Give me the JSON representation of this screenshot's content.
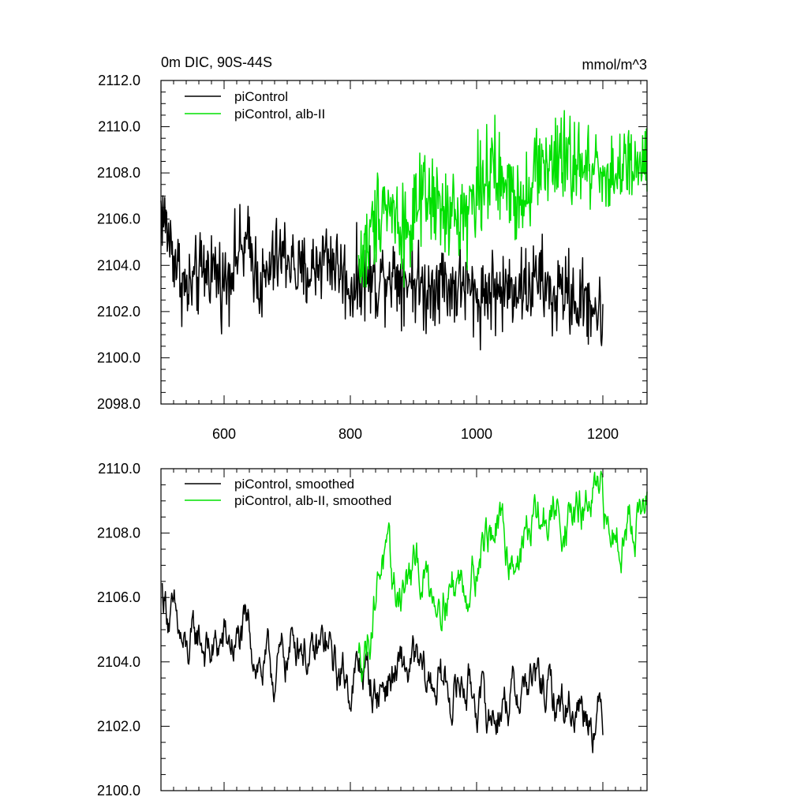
{
  "chart_data": [
    {
      "type": "line",
      "title": "0m DIC, 90S-44S",
      "units": "mmol/m^3",
      "xlabel": "",
      "ylabel": "",
      "xlim": [
        500,
        1270
      ],
      "ylim": [
        2098.0,
        2112.0
      ],
      "x_ticks": [
        600,
        800,
        1000,
        1200
      ],
      "x_tick_labels": [
        "600",
        "800",
        "1000",
        "1200"
      ],
      "y_ticks": [
        2098.0,
        2100.0,
        2102.0,
        2104.0,
        2106.0,
        2108.0,
        2110.0,
        2112.0
      ],
      "y_tick_labels": [
        "2098.0",
        "2100.0",
        "2102.0",
        "2104.0",
        "2106.0",
        "2108.0",
        "2110.0",
        "2112.0"
      ],
      "grid": false,
      "legend_position": "top-left",
      "series": [
        {
          "name": "piControl",
          "color": "#000000",
          "x_range": [
            500,
            1200
          ],
          "x": [
            500,
            520,
            540,
            560,
            580,
            600,
            620,
            640,
            660,
            680,
            700,
            720,
            740,
            760,
            780,
            800,
            820,
            840,
            860,
            880,
            900,
            920,
            940,
            960,
            980,
            1000,
            1020,
            1040,
            1060,
            1080,
            1100,
            1120,
            1140,
            1160,
            1180,
            1200
          ],
          "y": [
            2106.5,
            2104.5,
            2102.8,
            2103.5,
            2104.0,
            2103.2,
            2104.5,
            2104.8,
            2103.0,
            2104.2,
            2104.5,
            2103.5,
            2103.8,
            2104.5,
            2104.0,
            2103.0,
            2103.6,
            2103.2,
            2103.8,
            2103.5,
            2103.4,
            2102.8,
            2103.5,
            2103.0,
            2103.2,
            2102.5,
            2103.0,
            2102.8,
            2103.2,
            2103.0,
            2103.5,
            2102.5,
            2103.0,
            2102.3,
            2102.5,
            2101.5
          ]
        },
        {
          "name": "piControl, alb-II",
          "color": "#00e000",
          "x_range": [
            813,
            1270
          ],
          "x": [
            813,
            830,
            850,
            870,
            890,
            910,
            930,
            950,
            970,
            990,
            1010,
            1030,
            1050,
            1070,
            1090,
            1110,
            1130,
            1150,
            1170,
            1190,
            1210,
            1230,
            1250,
            1270
          ],
          "y": [
            2104.0,
            2105.0,
            2107.0,
            2106.2,
            2105.5,
            2106.5,
            2106.8,
            2106.0,
            2106.2,
            2106.5,
            2108.0,
            2107.8,
            2107.2,
            2107.0,
            2108.0,
            2108.5,
            2108.3,
            2108.6,
            2108.0,
            2108.5,
            2107.8,
            2108.2,
            2108.0,
            2108.5
          ]
        }
      ]
    },
    {
      "type": "line",
      "title": "",
      "xlabel": "",
      "ylabel": "",
      "xlim": [
        500,
        1270
      ],
      "ylim": [
        2100.0,
        2110.0
      ],
      "x_ticks": [
        600,
        800,
        1000,
        1200
      ],
      "y_ticks": [
        2100.0,
        2102.0,
        2104.0,
        2106.0,
        2108.0,
        2110.0
      ],
      "y_tick_labels": [
        "2100.0",
        "2102.0",
        "2104.0",
        "2106.0",
        "2108.0",
        "2110.0"
      ],
      "grid": false,
      "legend_position": "top-left",
      "series": [
        {
          "name": "piControl, smoothed",
          "color": "#000000",
          "x_range": [
            502,
            1200
          ],
          "x": [
            502,
            520,
            540,
            560,
            580,
            600,
            620,
            640,
            660,
            680,
            700,
            720,
            740,
            760,
            780,
            800,
            820,
            840,
            860,
            880,
            900,
            920,
            940,
            960,
            980,
            1000,
            1020,
            1040,
            1060,
            1080,
            1100,
            1120,
            1140,
            1160,
            1180,
            1200
          ],
          "y": [
            2106.2,
            2105.2,
            2104.0,
            2104.8,
            2104.2,
            2104.6,
            2104.5,
            2104.8,
            2103.8,
            2103.6,
            2104.2,
            2105.0,
            2103.8,
            2104.5,
            2103.6,
            2103.4,
            2103.8,
            2103.0,
            2103.5,
            2103.6,
            2103.8,
            2103.2,
            2103.5,
            2103.0,
            2103.4,
            2103.0,
            2102.2,
            2102.8,
            2103.0,
            2103.4,
            2103.2,
            2102.8,
            2102.6,
            2102.8,
            2102.5,
            2102.3
          ]
        },
        {
          "name": "piControl, alb-II, smoothed",
          "color": "#00e000",
          "x_range": [
            813,
            1270
          ],
          "x": [
            813,
            830,
            850,
            870,
            890,
            910,
            930,
            950,
            970,
            990,
            1010,
            1030,
            1050,
            1070,
            1090,
            1110,
            1130,
            1150,
            1170,
            1190,
            1210,
            1230,
            1250,
            1270
          ],
          "y": [
            2104.0,
            2105.0,
            2107.5,
            2106.0,
            2106.5,
            2106.8,
            2106.3,
            2106.4,
            2106.5,
            2106.6,
            2107.8,
            2108.2,
            2107.4,
            2107.5,
            2108.4,
            2108.3,
            2108.6,
            2108.5,
            2108.6,
            2109.0,
            2107.9,
            2108.3,
            2108.6,
            2108.7
          ]
        }
      ]
    }
  ]
}
